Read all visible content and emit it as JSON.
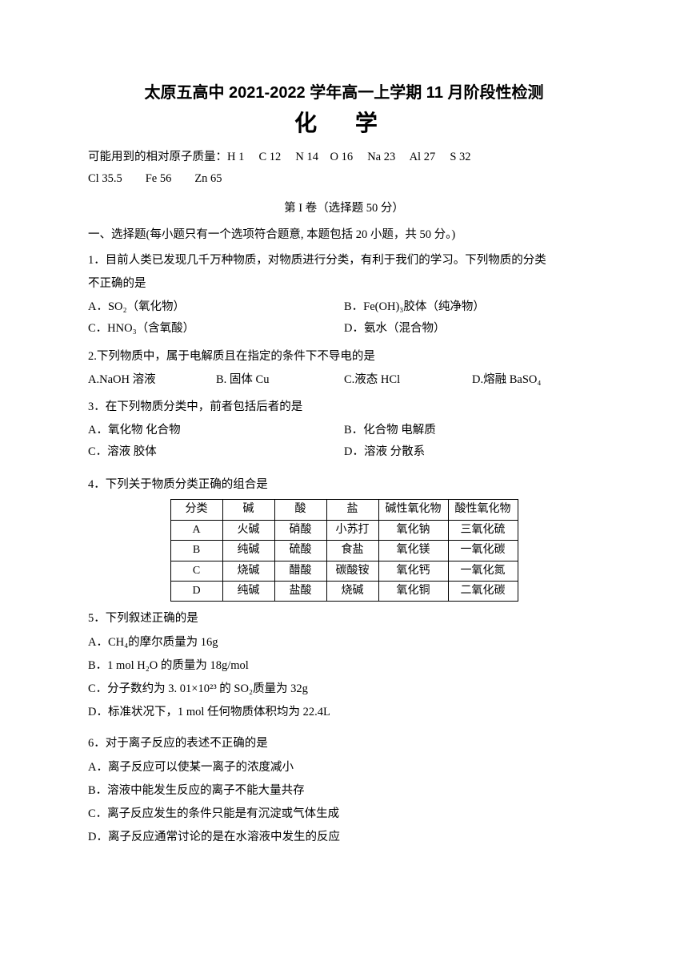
{
  "title_main": "太原五高中 2021-2022 学年高一上学期 11 月阶段性检测",
  "title_sub": "化 学",
  "atomic_mass_label": "可能用到的相对原子质量：",
  "atomic_mass_1": "H 1　 C 12　 N 14　O 16　 Na 23　 Al 27　 S 32",
  "atomic_mass_2": "Cl 35.5　　Fe 56　　Zn 65",
  "section1": "第 I 卷（选择题 50 分）",
  "instruction": "一、选择题(每小题只有一个选项符合题意, 本题包括 20 小题，共 50 分。)",
  "q1": {
    "text1": "1．目前人类已发现几千万种物质，对物质进行分类，有利于我们的学习。下列物质的分类",
    "text2": "不正确的是",
    "a": "A．SO₂（氧化物）",
    "b": "B．Fe(OH)₃胶体（纯净物）",
    "c": "C．HNO₃（含氧酸）",
    "d": "D．氨水（混合物）"
  },
  "q2": {
    "text": "2.下列物质中，属于电解质且在指定的条件下不导电的是",
    "a": "A.NaOH 溶液",
    "b": "B. 固体 Cu",
    "c": "C.液态 HCl",
    "d": "D.熔融 BaSO₄"
  },
  "q3": {
    "text": "3．在下列物质分类中，前者包括后者的是",
    "a": "A．氧化物  化合物",
    "b": "B．化合物  电解质",
    "c": "C．溶液  胶体",
    "d": "D．溶液  分散系"
  },
  "q4": {
    "text": "4．下列关于物质分类正确的组合是",
    "headers": [
      "分类",
      "碱",
      "酸",
      "盐",
      "碱性氧化物",
      "酸性氧化物"
    ],
    "rows": [
      [
        "A",
        "火碱",
        "硝酸",
        "小苏打",
        "氧化钠",
        "三氧化硫"
      ],
      [
        "B",
        "纯碱",
        "硫酸",
        "食盐",
        "氧化镁",
        "一氧化碳"
      ],
      [
        "C",
        "烧碱",
        "醋酸",
        "碳酸铵",
        "氧化钙",
        "一氧化氮"
      ],
      [
        "D",
        "纯碱",
        "盐酸",
        "烧碱",
        "氧化铜",
        "二氧化碳"
      ]
    ]
  },
  "q5": {
    "text": "5．下列叙述正确的是",
    "a": "A．CH₄的摩尔质量为 16g",
    "b": "B．1 mol H₂O 的质量为 18g/mol",
    "c": "C．分子数约为 3. 01×10²³ 的 SO₂质量为 32g",
    "d": "D．标准状况下，1 mol 任何物质体积均为 22.4L"
  },
  "q6": {
    "text": "6．对于离子反应的表述不正确的是",
    "a": "A．离子反应可以使某一离子的浓度减小",
    "b": "B．溶液中能发生反应的离子不能大量共存",
    "c": "C．离子反应发生的条件只能是有沉淀或气体生成",
    "d": "D．离子反应通常讨论的是在水溶液中发生的反应"
  }
}
